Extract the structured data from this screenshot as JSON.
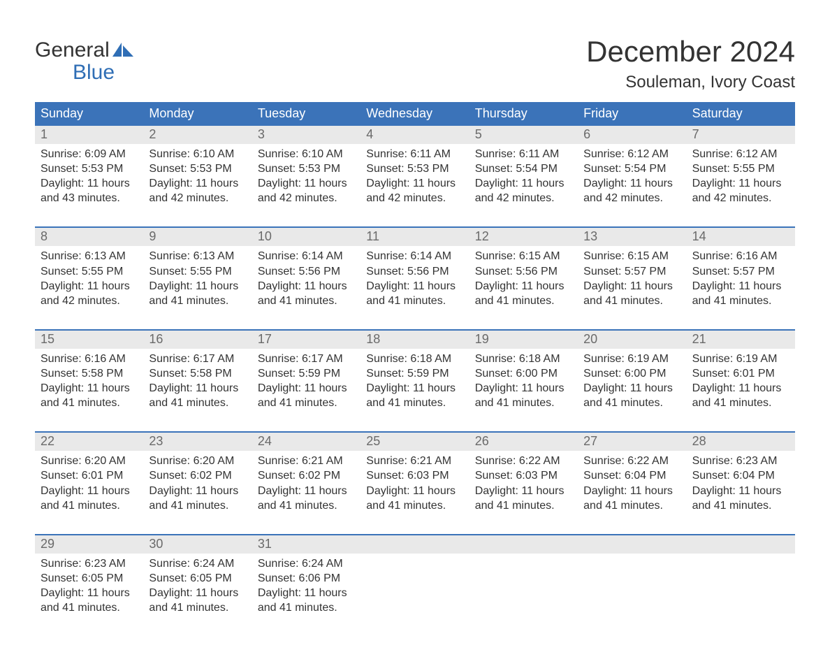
{
  "brand": {
    "word1": "General",
    "word2": "Blue",
    "accent_color": "#2f6eb5"
  },
  "title": "December 2024",
  "location": "Souleman, Ivory Coast",
  "colors": {
    "header_bg": "#3b73b9",
    "header_text": "#ffffff",
    "daynum_bg": "#e9e9e9",
    "daynum_text": "#6a6a6a",
    "body_text": "#333333",
    "week_rule": "#3b73b9",
    "page_bg": "#ffffff"
  },
  "typography": {
    "title_fontsize": 42,
    "location_fontsize": 24,
    "weekday_fontsize": 18,
    "daynum_fontsize": 18,
    "cell_fontsize": 16,
    "logo_fontsize": 30
  },
  "layout": {
    "columns": 7,
    "rows": 5,
    "aspect_w": 1188,
    "aspect_h": 918
  },
  "weekdays": [
    "Sunday",
    "Monday",
    "Tuesday",
    "Wednesday",
    "Thursday",
    "Friday",
    "Saturday"
  ],
  "weeks": [
    [
      {
        "num": "1",
        "sunrise": "Sunrise: 6:09 AM",
        "sunset": "Sunset: 5:53 PM",
        "daylight": "Daylight: 11 hours and 43 minutes."
      },
      {
        "num": "2",
        "sunrise": "Sunrise: 6:10 AM",
        "sunset": "Sunset: 5:53 PM",
        "daylight": "Daylight: 11 hours and 42 minutes."
      },
      {
        "num": "3",
        "sunrise": "Sunrise: 6:10 AM",
        "sunset": "Sunset: 5:53 PM",
        "daylight": "Daylight: 11 hours and 42 minutes."
      },
      {
        "num": "4",
        "sunrise": "Sunrise: 6:11 AM",
        "sunset": "Sunset: 5:53 PM",
        "daylight": "Daylight: 11 hours and 42 minutes."
      },
      {
        "num": "5",
        "sunrise": "Sunrise: 6:11 AM",
        "sunset": "Sunset: 5:54 PM",
        "daylight": "Daylight: 11 hours and 42 minutes."
      },
      {
        "num": "6",
        "sunrise": "Sunrise: 6:12 AM",
        "sunset": "Sunset: 5:54 PM",
        "daylight": "Daylight: 11 hours and 42 minutes."
      },
      {
        "num": "7",
        "sunrise": "Sunrise: 6:12 AM",
        "sunset": "Sunset: 5:55 PM",
        "daylight": "Daylight: 11 hours and 42 minutes."
      }
    ],
    [
      {
        "num": "8",
        "sunrise": "Sunrise: 6:13 AM",
        "sunset": "Sunset: 5:55 PM",
        "daylight": "Daylight: 11 hours and 42 minutes."
      },
      {
        "num": "9",
        "sunrise": "Sunrise: 6:13 AM",
        "sunset": "Sunset: 5:55 PM",
        "daylight": "Daylight: 11 hours and 41 minutes."
      },
      {
        "num": "10",
        "sunrise": "Sunrise: 6:14 AM",
        "sunset": "Sunset: 5:56 PM",
        "daylight": "Daylight: 11 hours and 41 minutes."
      },
      {
        "num": "11",
        "sunrise": "Sunrise: 6:14 AM",
        "sunset": "Sunset: 5:56 PM",
        "daylight": "Daylight: 11 hours and 41 minutes."
      },
      {
        "num": "12",
        "sunrise": "Sunrise: 6:15 AM",
        "sunset": "Sunset: 5:56 PM",
        "daylight": "Daylight: 11 hours and 41 minutes."
      },
      {
        "num": "13",
        "sunrise": "Sunrise: 6:15 AM",
        "sunset": "Sunset: 5:57 PM",
        "daylight": "Daylight: 11 hours and 41 minutes."
      },
      {
        "num": "14",
        "sunrise": "Sunrise: 6:16 AM",
        "sunset": "Sunset: 5:57 PM",
        "daylight": "Daylight: 11 hours and 41 minutes."
      }
    ],
    [
      {
        "num": "15",
        "sunrise": "Sunrise: 6:16 AM",
        "sunset": "Sunset: 5:58 PM",
        "daylight": "Daylight: 11 hours and 41 minutes."
      },
      {
        "num": "16",
        "sunrise": "Sunrise: 6:17 AM",
        "sunset": "Sunset: 5:58 PM",
        "daylight": "Daylight: 11 hours and 41 minutes."
      },
      {
        "num": "17",
        "sunrise": "Sunrise: 6:17 AM",
        "sunset": "Sunset: 5:59 PM",
        "daylight": "Daylight: 11 hours and 41 minutes."
      },
      {
        "num": "18",
        "sunrise": "Sunrise: 6:18 AM",
        "sunset": "Sunset: 5:59 PM",
        "daylight": "Daylight: 11 hours and 41 minutes."
      },
      {
        "num": "19",
        "sunrise": "Sunrise: 6:18 AM",
        "sunset": "Sunset: 6:00 PM",
        "daylight": "Daylight: 11 hours and 41 minutes."
      },
      {
        "num": "20",
        "sunrise": "Sunrise: 6:19 AM",
        "sunset": "Sunset: 6:00 PM",
        "daylight": "Daylight: 11 hours and 41 minutes."
      },
      {
        "num": "21",
        "sunrise": "Sunrise: 6:19 AM",
        "sunset": "Sunset: 6:01 PM",
        "daylight": "Daylight: 11 hours and 41 minutes."
      }
    ],
    [
      {
        "num": "22",
        "sunrise": "Sunrise: 6:20 AM",
        "sunset": "Sunset: 6:01 PM",
        "daylight": "Daylight: 11 hours and 41 minutes."
      },
      {
        "num": "23",
        "sunrise": "Sunrise: 6:20 AM",
        "sunset": "Sunset: 6:02 PM",
        "daylight": "Daylight: 11 hours and 41 minutes."
      },
      {
        "num": "24",
        "sunrise": "Sunrise: 6:21 AM",
        "sunset": "Sunset: 6:02 PM",
        "daylight": "Daylight: 11 hours and 41 minutes."
      },
      {
        "num": "25",
        "sunrise": "Sunrise: 6:21 AM",
        "sunset": "Sunset: 6:03 PM",
        "daylight": "Daylight: 11 hours and 41 minutes."
      },
      {
        "num": "26",
        "sunrise": "Sunrise: 6:22 AM",
        "sunset": "Sunset: 6:03 PM",
        "daylight": "Daylight: 11 hours and 41 minutes."
      },
      {
        "num": "27",
        "sunrise": "Sunrise: 6:22 AM",
        "sunset": "Sunset: 6:04 PM",
        "daylight": "Daylight: 11 hours and 41 minutes."
      },
      {
        "num": "28",
        "sunrise": "Sunrise: 6:23 AM",
        "sunset": "Sunset: 6:04 PM",
        "daylight": "Daylight: 11 hours and 41 minutes."
      }
    ],
    [
      {
        "num": "29",
        "sunrise": "Sunrise: 6:23 AM",
        "sunset": "Sunset: 6:05 PM",
        "daylight": "Daylight: 11 hours and 41 minutes."
      },
      {
        "num": "30",
        "sunrise": "Sunrise: 6:24 AM",
        "sunset": "Sunset: 6:05 PM",
        "daylight": "Daylight: 11 hours and 41 minutes."
      },
      {
        "num": "31",
        "sunrise": "Sunrise: 6:24 AM",
        "sunset": "Sunset: 6:06 PM",
        "daylight": "Daylight: 11 hours and 41 minutes."
      },
      {
        "num": "",
        "sunrise": "",
        "sunset": "",
        "daylight": ""
      },
      {
        "num": "",
        "sunrise": "",
        "sunset": "",
        "daylight": ""
      },
      {
        "num": "",
        "sunrise": "",
        "sunset": "",
        "daylight": ""
      },
      {
        "num": "",
        "sunrise": "",
        "sunset": "",
        "daylight": ""
      }
    ]
  ]
}
